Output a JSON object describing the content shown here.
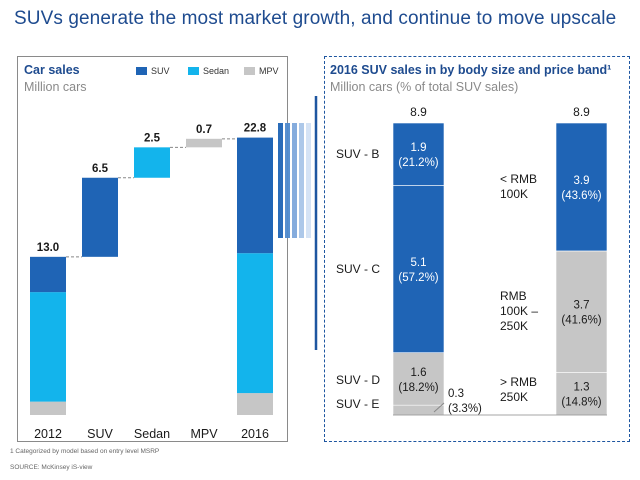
{
  "title": "SUVs generate the most market growth, and continue to move upscale",
  "colors": {
    "suv": "#1f64b5",
    "sedan": "#13b4ec",
    "mpv": "#c6c6c6",
    "accent": "#1e56a0"
  },
  "left_panel": {
    "title": "Car sales",
    "subtitle": "Million cars",
    "legend": [
      {
        "label": "SUV",
        "color": "#1f64b5"
      },
      {
        "label": "Sedan",
        "color": "#13b4ec"
      },
      {
        "label": "MPV",
        "color": "#c6c6c6"
      }
    ]
  },
  "right_panel": {
    "title": "2016 SUV sales in by body size and price band¹",
    "subtitle": "Million cars (% of total SUV sales)"
  },
  "footnote": "1 Categorized by model based on entry level MSRP",
  "source": "SOURCE: McKinsey iS-view",
  "chart_data": [
    {
      "type": "bar",
      "title": "Car sales",
      "ylabel": "Million cars",
      "categories": [
        "2012",
        "SUV",
        "Sedan",
        "MPV",
        "2016"
      ],
      "totals": [
        "13.0",
        "6.5",
        "2.5",
        "0.7",
        "22.8"
      ],
      "ylim": [
        0,
        24
      ],
      "grid": false,
      "legend_position": "top",
      "bars": [
        {
          "category": "2012",
          "kind": "total",
          "segments": [
            {
              "series": "MPV",
              "value": 1.1
            },
            {
              "series": "Sedan",
              "value": 9.0
            },
            {
              "series": "SUV",
              "value": 2.9
            }
          ]
        },
        {
          "category": "SUV",
          "kind": "increment",
          "base": 13.0,
          "segments": [
            {
              "series": "SUV",
              "value": 6.5
            }
          ]
        },
        {
          "category": "Sedan",
          "kind": "increment",
          "base": 19.5,
          "segments": [
            {
              "series": "Sedan",
              "value": 2.5
            }
          ]
        },
        {
          "category": "MPV",
          "kind": "increment",
          "base": 22.0,
          "segments": [
            {
              "series": "MPV",
              "value": 0.7
            }
          ]
        },
        {
          "category": "2016",
          "kind": "total",
          "segments": [
            {
              "series": "MPV",
              "value": 1.8
            },
            {
              "series": "Sedan",
              "value": 11.5
            },
            {
              "series": "SUV",
              "value": 9.5
            }
          ]
        }
      ]
    },
    {
      "type": "bar",
      "title": "2016 SUV sales in by body size and price band¹",
      "ylabel": "Million cars (% of total SUV sales)",
      "ylim": [
        0,
        8.9
      ],
      "grid": false,
      "columns": [
        {
          "name": "body size",
          "total": "8.9",
          "segments": [
            {
              "label": "SUV - E",
              "value": 0.3,
              "text": "0.3",
              "pct": "(3.3%)",
              "color": "#c6c6c6"
            },
            {
              "label": "SUV - D",
              "value": 1.6,
              "text": "1.6",
              "pct": "(18.2%)",
              "color": "#c6c6c6"
            },
            {
              "label": "SUV - C",
              "value": 5.1,
              "text": "5.1",
              "pct": "(57.2%)",
              "color": "#1f64b5"
            },
            {
              "label": "SUV - B",
              "value": 1.9,
              "text": "1.9",
              "pct": "(21.2%)",
              "color": "#1f64b5"
            }
          ]
        },
        {
          "name": "price band",
          "total": "8.9",
          "segments": [
            {
              "label": "> RMB 250K",
              "label_lines": [
                "> RMB",
                "250K"
              ],
              "value": 1.3,
              "text": "1.3",
              "pct": "(14.8%)",
              "color": "#c6c6c6"
            },
            {
              "label": "RMB 100K – 250K",
              "label_lines": [
                "RMB",
                "100K –",
                "250K"
              ],
              "value": 3.7,
              "text": "3.7",
              "pct": "(41.6%)",
              "color": "#c6c6c6"
            },
            {
              "label": "< RMB 100K",
              "label_lines": [
                "< RMB",
                "100K"
              ],
              "value": 3.9,
              "text": "3.9",
              "pct": "(43.6%)",
              "color": "#1f64b5"
            }
          ]
        }
      ]
    }
  ]
}
